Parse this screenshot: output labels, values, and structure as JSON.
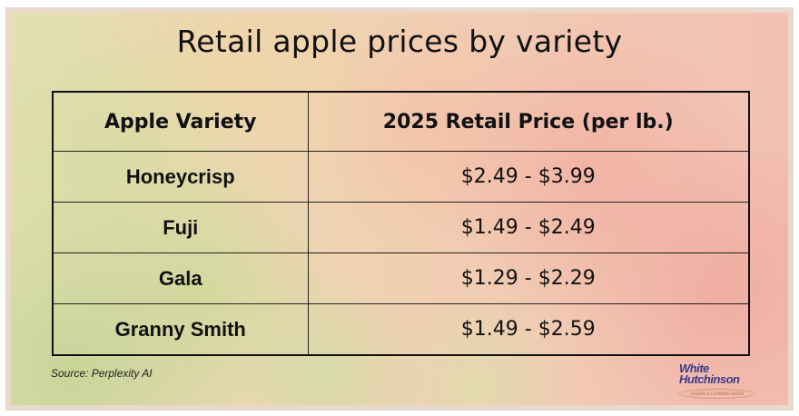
{
  "title": "Retail apple prices by variety",
  "table": {
    "headers": [
      "Apple Variety",
      "2025 Retail Price (per lb.)"
    ],
    "rows": [
      {
        "variety": "Honeycrisp",
        "price": "$2.49 - $3.99"
      },
      {
        "variety": "Fuji",
        "price": "$1.49 - $2.49"
      },
      {
        "variety": "Gala",
        "price": "$1.29 - $2.29"
      },
      {
        "variety": "Granny Smith",
        "price": "$1.49 - $2.59"
      }
    ]
  },
  "source": "Source: Perplexity AI",
  "logo": {
    "line1": "White",
    "line2": "Hutchinson",
    "tagline": "LEISURE & LEARNING GROUP"
  }
}
